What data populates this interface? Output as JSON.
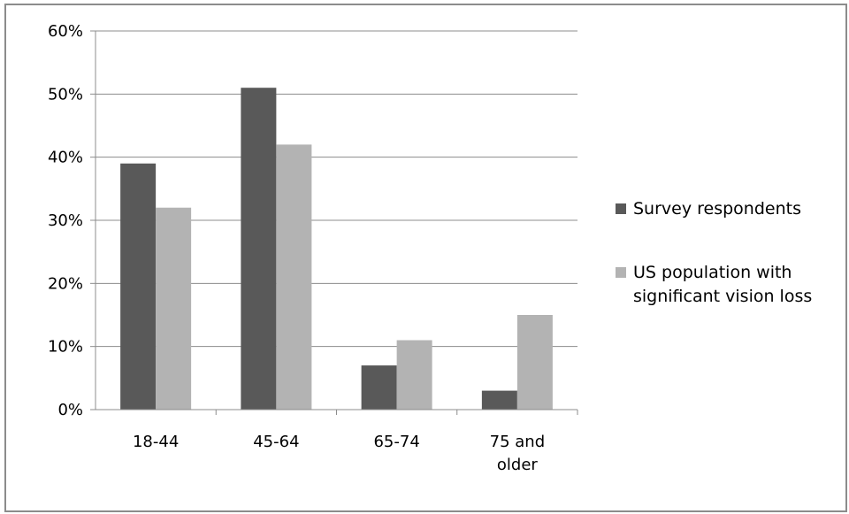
{
  "chart_data": {
    "type": "bar",
    "categories": [
      [
        "18-44"
      ],
      [
        "45-64"
      ],
      [
        "65-74"
      ],
      [
        "75 and",
        "older"
      ]
    ],
    "series": [
      {
        "name": "Survey respondents",
        "values": [
          39,
          51,
          7,
          3
        ],
        "color": "#595959"
      },
      {
        "name": "US population with significant vision loss",
        "name_lines": [
          "US population with",
          "significant vision loss"
        ],
        "values": [
          32,
          42,
          11,
          15
        ],
        "color": "#b3b3b3"
      }
    ],
    "ylim": [
      0,
      60
    ],
    "yticks": [
      "0%",
      "10%",
      "20%",
      "30%",
      "40%",
      "50%",
      "60%"
    ],
    "grid": true,
    "legend": "right",
    "title": "",
    "xlabel": "",
    "ylabel": ""
  }
}
